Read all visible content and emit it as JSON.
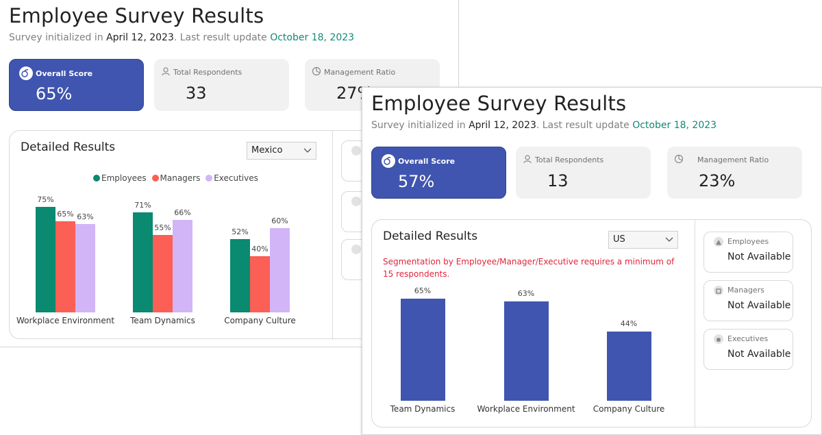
{
  "back": {
    "title": "Employee Survey Results",
    "subtitle": {
      "prefix": "Survey initialized in ",
      "init_date": "April 12, 2023",
      "mid": ". Last result update ",
      "update_date": "October 18, 2023"
    },
    "kpis": {
      "overall": {
        "label": "Overall Score",
        "value": "65%"
      },
      "respondents": {
        "label": "Total Respondents",
        "value": "33"
      },
      "ratio": {
        "label": "Management Ratio",
        "value": "27%"
      }
    },
    "results": {
      "title": "Detailed Results",
      "dropdown_value": "Mexico",
      "legend": [
        "Employees",
        "Managers",
        "Executives"
      ]
    }
  },
  "front": {
    "title": "Employee Survey Results",
    "subtitle": {
      "prefix": "Survey initialized in ",
      "init_date": "April 12, 2023",
      "mid": ". Last result update ",
      "update_date": "October 18, 2023"
    },
    "kpis": {
      "overall": {
        "label": "Overall Score",
        "value": "57%"
      },
      "respondents": {
        "label": "Total Respondents",
        "value": "13"
      },
      "ratio": {
        "label": "Management Ratio",
        "value": "23%"
      }
    },
    "results": {
      "title": "Detailed Results",
      "dropdown_value": "US",
      "warning": "Segmentation by Employee/Manager/Executive requires a minimum of 15 respondents."
    },
    "segments": [
      {
        "title": "Employees",
        "value": "Not Available",
        "icon": "triangle-icon"
      },
      {
        "title": "Managers",
        "value": "Not Available",
        "icon": "square-icon"
      },
      {
        "title": "Executives",
        "value": "Not Available",
        "icon": "circle-icon"
      }
    ]
  },
  "colors": {
    "primary": "#3f55af",
    "employees": "#0a8a70",
    "managers": "#fb5f55",
    "executives": "#d2b5f7",
    "green_text": "#0f8a74",
    "warning": "#e0243b"
  },
  "chart_data": [
    {
      "type": "bar",
      "categories": [
        "Workplace Environment",
        "Team Dynamics",
        "Company Culture"
      ],
      "series": [
        {
          "name": "Employees",
          "values": [
            75,
            71,
            52
          ]
        },
        {
          "name": "Managers",
          "values": [
            65,
            55,
            40
          ]
        },
        {
          "name": "Executives",
          "values": [
            63,
            66,
            60
          ]
        }
      ],
      "ylim": [
        0,
        100
      ],
      "legend": "top-center",
      "grid": false
    },
    {
      "type": "bar",
      "categories": [
        "Team Dynamics",
        "Workplace Environment",
        "Company Culture"
      ],
      "values": [
        65,
        63,
        44
      ],
      "ylim": [
        0,
        100
      ],
      "grid": false
    }
  ]
}
